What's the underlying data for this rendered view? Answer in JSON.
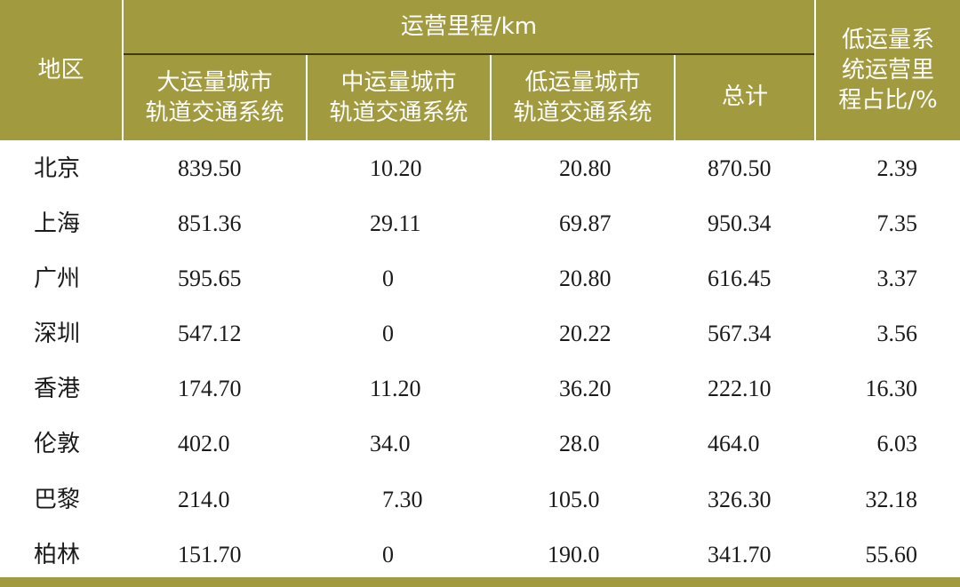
{
  "table": {
    "header": {
      "region": "地区",
      "group": "运营里程/km",
      "col_large": [
        "大运量城市",
        "轨道交通系统"
      ],
      "col_medium": [
        "中运量城市",
        "轨道交通系统"
      ],
      "col_low": [
        "低运量城市",
        "轨道交通系统"
      ],
      "col_total": "总计",
      "col_ratio": [
        "低运量系",
        "统运营里",
        "程占比/%"
      ]
    },
    "rows": [
      {
        "region": "北京",
        "large": "839.50",
        "medium": "10.20",
        "low": "20.80",
        "total": "870.50",
        "ratio": "2.39"
      },
      {
        "region": "上海",
        "large": "851.36",
        "medium": "29.11",
        "low": "69.87",
        "total": "950.34",
        "ratio": "7.35"
      },
      {
        "region": "广州",
        "large": "595.65",
        "medium": "0",
        "low": "20.80",
        "total": "616.45",
        "ratio": "3.37"
      },
      {
        "region": "深圳",
        "large": "547.12",
        "medium": "0",
        "low": "20.22",
        "total": "567.34",
        "ratio": "3.56"
      },
      {
        "region": "香港",
        "large": "174.70",
        "medium": "11.20",
        "low": "36.20",
        "total": "222.10",
        "ratio": "16.30"
      },
      {
        "region": "伦敦",
        "large": "402.0",
        "medium": "34.0",
        "low": "28.0",
        "total": "464.0",
        "ratio": "6.03"
      },
      {
        "region": "巴黎",
        "large": "214.0",
        "medium": "7.30",
        "low": "105.0",
        "total": "326.30",
        "ratio": "32.18"
      },
      {
        "region": "柏林",
        "large": "151.70",
        "medium": "0",
        "low": "190.0",
        "total": "341.70",
        "ratio": "55.60"
      }
    ]
  },
  "colors": {
    "header_bg": "#a19a3f",
    "header_text": "#ffffff",
    "body_text": "#1a1a1a"
  }
}
